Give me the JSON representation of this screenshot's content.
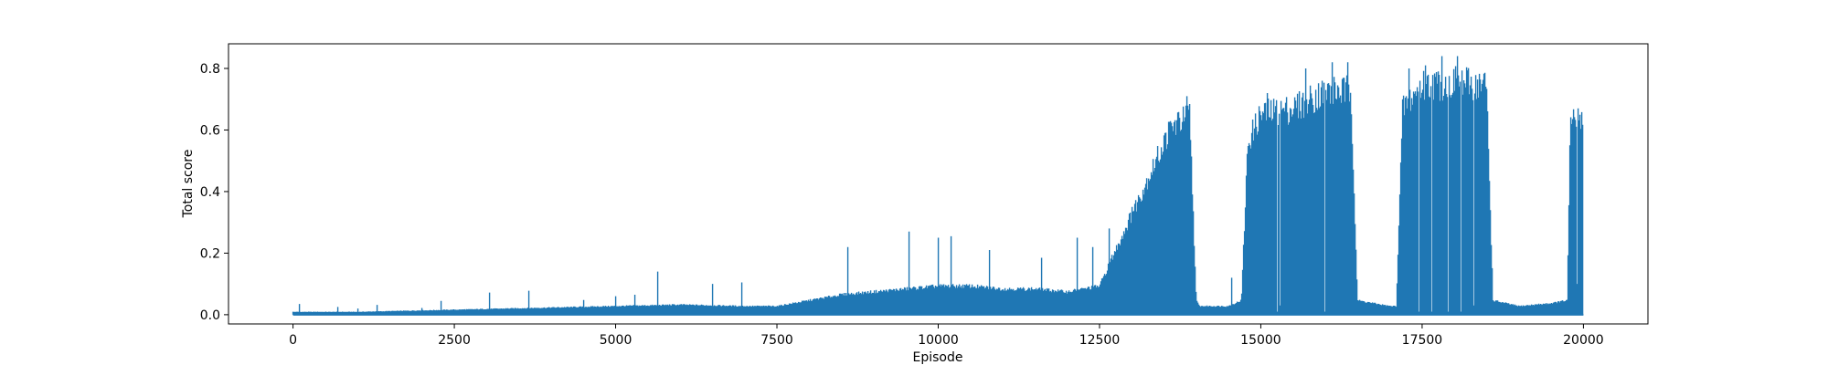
{
  "chart_data": {
    "type": "line",
    "title": "",
    "xlabel": "Episode",
    "ylabel": "Total score",
    "xlim": [
      -1000,
      21000
    ],
    "ylim": [
      -0.03,
      0.88
    ],
    "x_ticks": [
      0,
      2500,
      5000,
      7500,
      10000,
      12500,
      15000,
      17500,
      20000
    ],
    "y_ticks": [
      0.0,
      0.2,
      0.4,
      0.6,
      0.8
    ],
    "x_tick_labels": [
      "0",
      "2500",
      "5000",
      "7500",
      "10000",
      "12500",
      "15000",
      "17500",
      "20000"
    ],
    "y_tick_labels": [
      "0.0",
      "0.2",
      "0.4",
      "0.6",
      "0.8"
    ],
    "grid": false,
    "legend": "none",
    "series": [
      {
        "color": "#1f77b4",
        "baseline": 0.0,
        "episodes": 20000,
        "envelope_x": [
          0,
          500,
          1000,
          2000,
          3000,
          4000,
          5000,
          6000,
          7000,
          7500,
          8000,
          8500,
          9000,
          9500,
          10000,
          10500,
          11000,
          11500,
          12000,
          12500,
          12700,
          13000,
          13300,
          13600,
          13900,
          14000,
          14050,
          14500,
          14700,
          14800,
          15000,
          15500,
          16000,
          16400,
          16500,
          17000,
          17100,
          17200,
          17500,
          18000,
          18500,
          18600,
          19000,
          19500,
          19750,
          19800,
          20000
        ],
        "envelope_y": [
          0.01,
          0.01,
          0.01,
          0.015,
          0.02,
          0.025,
          0.03,
          0.035,
          0.03,
          0.03,
          0.05,
          0.07,
          0.08,
          0.09,
          0.1,
          0.1,
          0.09,
          0.09,
          0.08,
          0.1,
          0.2,
          0.35,
          0.5,
          0.65,
          0.7,
          0.05,
          0.03,
          0.03,
          0.05,
          0.6,
          0.7,
          0.72,
          0.78,
          0.78,
          0.05,
          0.03,
          0.03,
          0.72,
          0.8,
          0.81,
          0.8,
          0.05,
          0.03,
          0.04,
          0.05,
          0.68,
          0.7
        ],
        "spikes": [
          [
            100,
            0.035
          ],
          [
            700,
            0.025
          ],
          [
            1000,
            0.02
          ],
          [
            1300,
            0.032
          ],
          [
            2000,
            0.022
          ],
          [
            2300,
            0.045
          ],
          [
            3050,
            0.072
          ],
          [
            3650,
            0.078
          ],
          [
            4500,
            0.048
          ],
          [
            5000,
            0.06
          ],
          [
            5300,
            0.065
          ],
          [
            5650,
            0.14
          ],
          [
            6500,
            0.1
          ],
          [
            6950,
            0.105
          ],
          [
            8600,
            0.22
          ],
          [
            9550,
            0.27
          ],
          [
            10000,
            0.25
          ],
          [
            10200,
            0.255
          ],
          [
            10800,
            0.21
          ],
          [
            11600,
            0.185
          ],
          [
            12150,
            0.25
          ],
          [
            12400,
            0.22
          ],
          [
            12650,
            0.28
          ],
          [
            13000,
            0.35
          ],
          [
            13500,
            0.55
          ],
          [
            13850,
            0.71
          ],
          [
            14550,
            0.12
          ],
          [
            15100,
            0.72
          ],
          [
            15700,
            0.8
          ],
          [
            16100,
            0.82
          ],
          [
            16350,
            0.82
          ],
          [
            17300,
            0.8
          ],
          [
            17550,
            0.81
          ],
          [
            17800,
            0.84
          ],
          [
            18050,
            0.84
          ],
          [
            18300,
            0.82
          ],
          [
            19900,
            0.73
          ]
        ],
        "dips": [
          [
            15250,
            0.01
          ],
          [
            15300,
            0.03
          ],
          [
            16000,
            0.01
          ],
          [
            17450,
            0.01
          ],
          [
            17650,
            0.01
          ],
          [
            17900,
            0.01
          ],
          [
            18100,
            0.01
          ],
          [
            18300,
            0.03
          ],
          [
            19900,
            0.1
          ]
        ]
      }
    ]
  }
}
